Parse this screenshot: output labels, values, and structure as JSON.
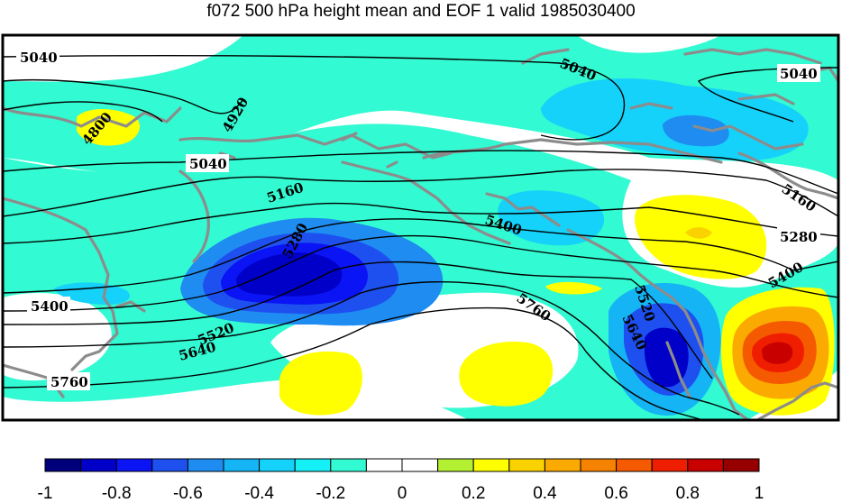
{
  "title": "f072 500 hPa height mean and EOF 1 valid 1985030400",
  "map": {
    "field": "500 hPa height mean",
    "contour_labels": [
      {
        "id": "5040-nw",
        "text": "5040"
      },
      {
        "id": "4800",
        "text": "4800"
      },
      {
        "id": "4920",
        "text": "4920"
      },
      {
        "id": "5040-w",
        "text": "5040"
      },
      {
        "id": "5040-nc",
        "text": "5040"
      },
      {
        "id": "5040-ne",
        "text": "5040"
      },
      {
        "id": "5160-c",
        "text": "5160"
      },
      {
        "id": "5280-c",
        "text": "5280"
      },
      {
        "id": "5400-c",
        "text": "5400"
      },
      {
        "id": "5160-e",
        "text": "5160"
      },
      {
        "id": "5280-e",
        "text": "5280"
      },
      {
        "id": "5400-e",
        "text": "5400"
      },
      {
        "id": "5400-w",
        "text": "5400"
      },
      {
        "id": "5520-w",
        "text": "5520"
      },
      {
        "id": "5640-w",
        "text": "5640"
      },
      {
        "id": "5760-w",
        "text": "5760"
      },
      {
        "id": "5760-c",
        "text": "5760"
      },
      {
        "id": "5520-e",
        "text": "5520"
      },
      {
        "id": "5640-e",
        "text": "5640"
      }
    ]
  },
  "colorbar": {
    "ticks": [
      "-1",
      "-0.8",
      "-0.6",
      "-0.4",
      "-0.2",
      "0",
      "0.2",
      "0.4",
      "0.6",
      "0.8",
      "1"
    ],
    "colors": [
      "#00007d",
      "#0000c8",
      "#0a14f5",
      "#1e50f0",
      "#1e8cf0",
      "#14b4f5",
      "#14d2fa",
      "#14f0f5",
      "#32fad2",
      "#ffffff",
      "#ffffff",
      "#b4f032",
      "#ffff00",
      "#fad200",
      "#faaa00",
      "#f58200",
      "#f55a00",
      "#f01e00",
      "#c80000",
      "#960000"
    ]
  }
}
